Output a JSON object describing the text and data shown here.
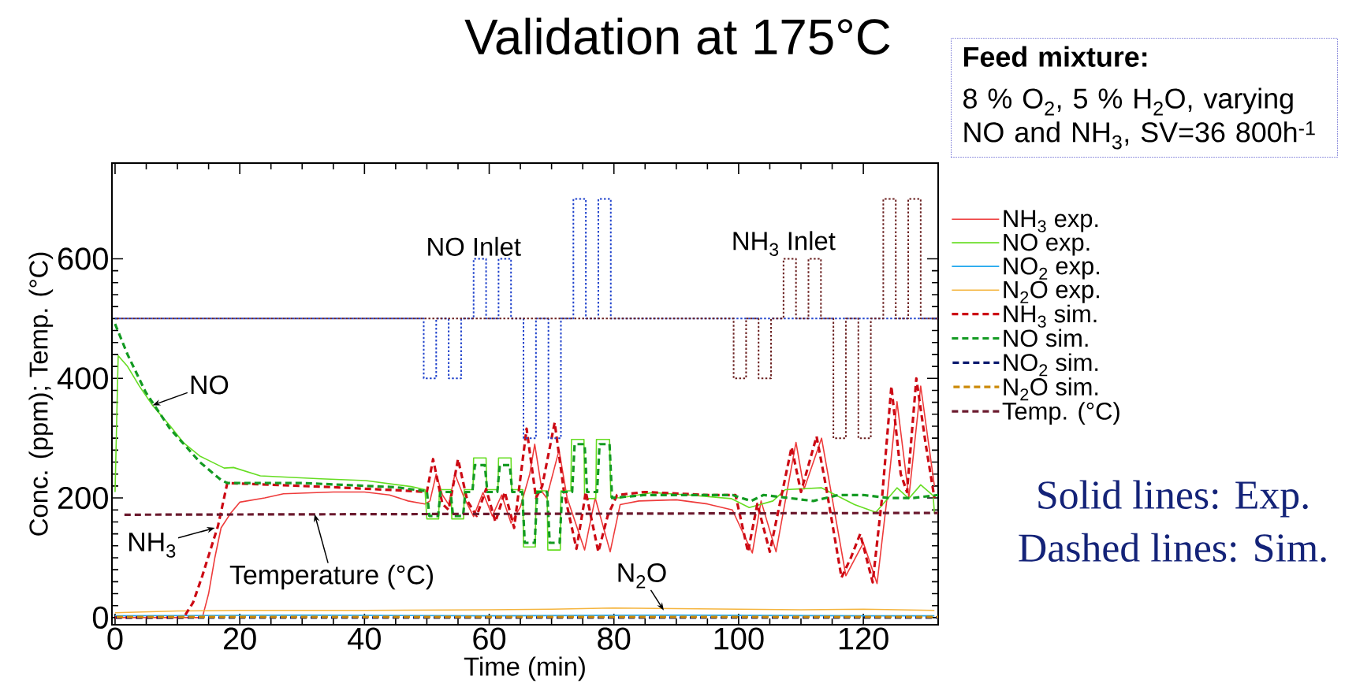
{
  "chart_data": {
    "type": "line",
    "title": "Validation at 175°C",
    "xlabel": "Time (min)",
    "ylabel": "Conc. (ppm); Temp. (°C)",
    "xlim": [
      -0.5,
      132
    ],
    "ylim": [
      -12,
      760
    ],
    "xticks": [
      0,
      20,
      40,
      60,
      80,
      100,
      120
    ],
    "yticks": [
      0,
      200,
      400,
      600
    ],
    "legend": "right",
    "series": [
      {
        "name": "NH$_{3}$ exp.",
        "color": "#ee3b3b",
        "line_style": "solid",
        "x": [
          0,
          14,
          15,
          16,
          17,
          18.5,
          20,
          24,
          27,
          35,
          40,
          44,
          47,
          49.7,
          50.5,
          51.5,
          52.5,
          53.5,
          54.5,
          56,
          57.5,
          59,
          60.5,
          62,
          63.5,
          65,
          66.5,
          67.3,
          68.5,
          69.2,
          71.2,
          72.5,
          75.3,
          77,
          79.4,
          81,
          84,
          90,
          95,
          99,
          102.2,
          103.6,
          106,
          109.2,
          110.5,
          113.3,
          115,
          117.2,
          120,
          122.2,
          123.8,
          125.4,
          127.3,
          129.2,
          131.4
        ],
        "values": [
          0,
          0,
          40,
          100,
          150,
          174,
          193,
          200,
          207,
          210,
          210,
          205,
          195,
          190,
          195,
          240,
          205,
          189,
          240,
          200,
          169,
          209,
          170,
          205,
          158,
          185,
          240,
          290,
          210,
          200,
          280,
          200,
          113,
          200,
          110,
          189,
          195,
          197,
          190,
          180,
          108,
          195,
          110,
          293,
          215,
          300,
          200,
          70,
          125,
          57,
          200,
          361,
          201,
          387,
          220
        ]
      },
      {
        "name": "NO exp.",
        "color": "#66dd22",
        "line_style": "solid",
        "x": [
          0,
          0.5,
          2,
          3.9,
          6,
          8.8,
          11,
          13.6,
          17.5,
          19,
          23.3,
          33,
          40.2,
          47.5,
          49.7,
          50,
          51.9,
          52,
          53.9,
          54,
          55.9,
          56,
          57.4,
          57.5,
          59.5,
          59.6,
          61.4,
          61.5,
          63.5,
          63.6,
          65.4,
          65.5,
          67.4,
          67.5,
          69.3,
          69.4,
          71.4,
          71.5,
          73.1,
          73.2,
          75.2,
          75.3,
          77.1,
          77.2,
          79.3,
          79.5,
          81,
          86.2,
          92,
          98.8,
          101.7,
          105.5,
          107.5,
          113.3,
          118.6,
          122,
          125.4,
          127.3,
          129.2,
          131.2,
          131.4
        ],
        "values": [
          210,
          438,
          420,
          387,
          355,
          321,
          292,
          270,
          250,
          251,
          237,
          232,
          229,
          219,
          214,
          165,
          165,
          214,
          214,
          165,
          165,
          214,
          214,
          267,
          267,
          214,
          214,
          267,
          267,
          214,
          214,
          118,
          118,
          212,
          212,
          113,
          113,
          212,
          212,
          298,
          298,
          199,
          199,
          298,
          298,
          201,
          200,
          209,
          205,
          199,
          184,
          195,
          214,
          217,
          189,
          176,
          217,
          199,
          222,
          204,
          174
        ]
      },
      {
        "name": "NO$_{2}$ exp.",
        "color": "#22a8ee",
        "line_style": "solid",
        "x": [
          0,
          30,
          60,
          90,
          120,
          131.4
        ],
        "values": [
          3,
          4,
          3,
          4,
          3,
          3
        ]
      },
      {
        "name": "N$_{2}$O exp.",
        "color": "#f5b53f",
        "line_style": "solid",
        "x": [
          0,
          10,
          20,
          40,
          60,
          70,
          80,
          90,
          100,
          110,
          120,
          131.4
        ],
        "values": [
          8,
          11,
          12,
          12,
          13,
          14,
          16,
          15,
          14,
          13,
          14,
          12
        ]
      },
      {
        "name": "NH$_{3}$  sim.",
        "color": "#cc0a14",
        "line_style": "dashed",
        "x": [
          0,
          11,
          12.5,
          14,
          15.5,
          16.5,
          18,
          25,
          35,
          45,
          50,
          51,
          52.5,
          53.5,
          55,
          56.5,
          58,
          59.5,
          61,
          62.5,
          64,
          66,
          67.5,
          68.5,
          70.5,
          72,
          74,
          75.5,
          77.5,
          79,
          80.5,
          85,
          95,
          99.5,
          101.5,
          103,
          105,
          107,
          108.5,
          110,
          112.5,
          114,
          116.5,
          118,
          119.5,
          121.5,
          123,
          124.5,
          126,
          127,
          128.5,
          130,
          131.4
        ],
        "values": [
          0,
          0,
          25,
          70,
          120,
          153,
          225,
          222,
          218,
          213,
          210,
          265,
          190,
          180,
          265,
          195,
          170,
          215,
          160,
          210,
          150,
          316,
          200,
          220,
          326,
          210,
          115,
          210,
          110,
          170,
          205,
          210,
          205,
          205,
          110,
          190,
          110,
          210,
          285,
          210,
          303,
          220,
          67,
          100,
          140,
          59,
          200,
          387,
          240,
          210,
          400,
          290,
          200
        ]
      },
      {
        "name": "NO sim.",
        "color": "#139a22",
        "line_style": "dashed",
        "x": [
          0,
          2,
          4.9,
          8.8,
          13.6,
          17,
          18,
          30,
          45,
          49.4,
          50,
          50.4,
          51.8,
          52.2,
          53.8,
          54.2,
          55.8,
          56.2,
          57.3,
          57.7,
          59.3,
          59.7,
          61.3,
          61.7,
          63.3,
          63.7,
          65.3,
          65.7,
          67.3,
          67.7,
          69.3,
          69.7,
          71.3,
          71.7,
          73.3,
          73.7,
          75.3,
          75.7,
          77.3,
          77.7,
          79.3,
          79.7,
          85,
          99,
          102,
          104,
          108,
          112,
          116,
          120,
          124,
          128,
          132
        ],
        "values": [
          491,
          440,
          377,
          316,
          260,
          230,
          225,
          225,
          218,
          212,
          212,
          170,
          170,
          210,
          210,
          170,
          170,
          210,
          210,
          255,
          255,
          210,
          210,
          255,
          255,
          210,
          210,
          125,
          125,
          210,
          210,
          125,
          125,
          210,
          210,
          290,
          290,
          210,
          210,
          290,
          290,
          200,
          205,
          205,
          195,
          205,
          200,
          195,
          205,
          205,
          200,
          200,
          205
        ]
      },
      {
        "name": "NO$_{2}$ sim.",
        "color": "#0b1a6e",
        "line_style": "dashed",
        "x": [
          0,
          132
        ],
        "values": [
          0,
          0
        ]
      },
      {
        "name": "N$_{2}$O sim.",
        "color": "#cc8a0a",
        "line_style": "dashed",
        "x": [
          0,
          132
        ],
        "values": [
          1,
          1
        ]
      },
      {
        "name": "Temp. (°C)",
        "color": "#6b1a2e",
        "line_style": "dashed",
        "x": [
          1.5,
          132
        ],
        "values": [
          172,
          175
        ]
      },
      {
        "name": "NO Inlet",
        "type": "step",
        "color": "#2244cc",
        "line_style": "dotted",
        "x": [
          0,
          49.5,
          51.5,
          53.5,
          55.5,
          57.5,
          59.5,
          61.5,
          63.5,
          65.5,
          67.5,
          69.5,
          71.5,
          73.5,
          75.5,
          77.5,
          79.5,
          132
        ],
        "values": [
          500,
          400,
          500,
          400,
          500,
          600,
          500,
          600,
          500,
          300,
          500,
          300,
          500,
          700,
          500,
          700,
          500,
          500
        ]
      },
      {
        "name": "NH$_{3}$ Inlet",
        "type": "step",
        "color": "#6b2020",
        "line_style": "dotted",
        "x": [
          0,
          99.2,
          101.2,
          103.2,
          105.2,
          107.2,
          109.2,
          111.2,
          113.2,
          115.2,
          117.2,
          119.2,
          121.2,
          123.2,
          125.2,
          127.2,
          129.2,
          132
        ],
        "values": [
          500,
          400,
          500,
          400,
          500,
          600,
          500,
          600,
          500,
          300,
          500,
          300,
          500,
          700,
          500,
          700,
          500,
          500
        ]
      }
    ],
    "annotations": [
      "Feed mixture:",
      "8 % O$_{2}$, 5 % H$_{2}$O, varying NO and NH$_{3}$, SV=36 800h$^{-1}$",
      "Solid lines: Exp.",
      "Dashed lines: Sim.",
      {
        "text": "NO",
        "x": 6,
        "y": 355
      },
      {
        "text": "NH$_{3}$",
        "x": 16,
        "y": 150
      },
      {
        "text": "Temperature (°C)",
        "x": 32,
        "y": 173
      },
      {
        "text": "N$_{2}$O",
        "x": 88,
        "y": 12
      }
    ]
  }
}
